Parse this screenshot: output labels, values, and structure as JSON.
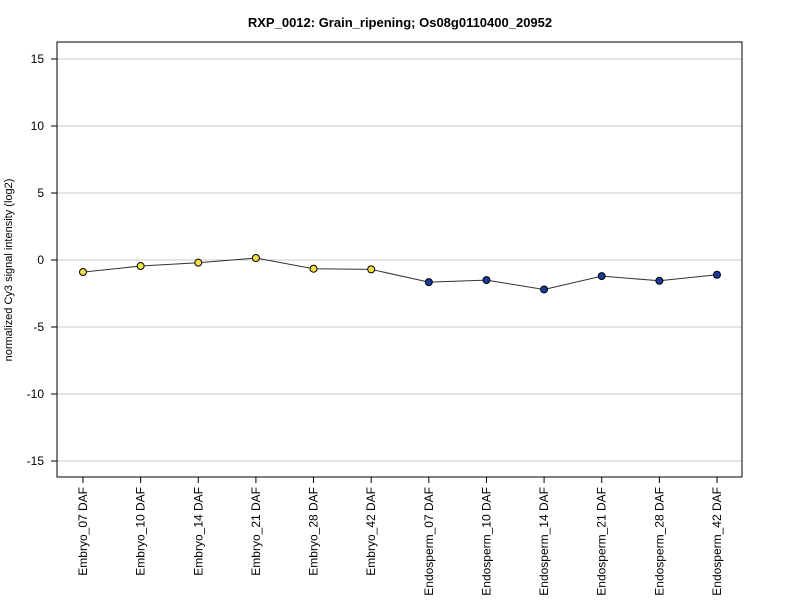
{
  "chart_data": {
    "type": "line",
    "title": "RXP_0012: Grain_ripening; Os08g0110400_20952",
    "xlabel": "",
    "ylabel": "normalized Cy3 signal intensity (log2)",
    "ylim": [
      -16,
      16
    ],
    "yticks": [
      15,
      10,
      5,
      0,
      -5,
      -10,
      -15
    ],
    "grid": true,
    "categories": [
      "Embryo_07 DAF",
      "Embryo_10 DAF",
      "Embryo_14 DAF",
      "Embryo_21 DAF",
      "Embryo_28 DAF",
      "Embryo_42 DAF",
      "Endosperm_07 DAF",
      "Endosperm_10 DAF",
      "Endosperm_14 DAF",
      "Endosperm_21 DAF",
      "Endosperm_28 DAF",
      "Endosperm_42 DAF"
    ],
    "series": [
      {
        "name": "",
        "values": [
          -0.9,
          -0.45,
          -0.2,
          0.15,
          -0.65,
          -0.7,
          -1.65,
          -1.5,
          -2.2,
          -1.2,
          -1.55,
          -1.1
        ]
      }
    ],
    "point_colors": [
      "#f0e040",
      "#f0e040",
      "#f0e040",
      "#f0e040",
      "#f0e040",
      "#f0e040",
      "#1a3a9c",
      "#1a3a9c",
      "#1a3a9c",
      "#1a3a9c",
      "#1a3a9c",
      "#1a3a9c"
    ],
    "line_color": "#333333",
    "grid_color": "#c8c8c8"
  }
}
